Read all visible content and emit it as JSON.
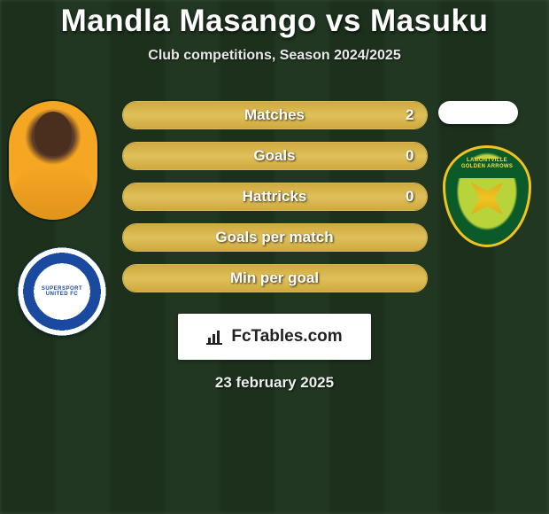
{
  "title": "Mandla Masango vs Masuku",
  "subtitle": "Club competitions, Season 2024/2025",
  "date": "23 february 2025",
  "fc_label": "FcTables.com",
  "colors": {
    "bar_border": "#d8b858",
    "bar_fill_top": "#cfa93e",
    "bar_fill_mid": "#dfc05a",
    "text_white": "#ffffff",
    "field_dark": "#3d6b3d",
    "field_light": "#4a7a4a"
  },
  "left_player": {
    "name": "Mandla Masango",
    "club": "SuperSport United FC"
  },
  "right_player": {
    "name": "Masuku",
    "club": "Lamontville Golden Arrows"
  },
  "stats": [
    {
      "label": "Matches",
      "value_left": "2",
      "fill_pct": 100
    },
    {
      "label": "Goals",
      "value_left": "0",
      "fill_pct": 100
    },
    {
      "label": "Hattricks",
      "value_left": "0",
      "fill_pct": 100
    },
    {
      "label": "Goals per match",
      "value_left": "",
      "fill_pct": 100
    },
    {
      "label": "Min per goal",
      "value_left": "",
      "fill_pct": 100
    }
  ]
}
